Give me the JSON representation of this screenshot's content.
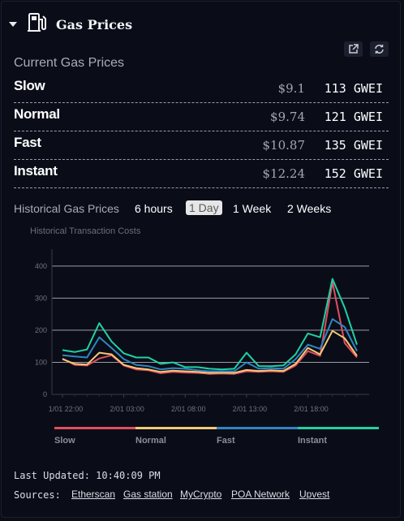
{
  "widget": {
    "title": "Gas Prices",
    "icons": {
      "collapse": "caret-down-icon",
      "header": "gas-pump-icon",
      "open": "external-link-icon",
      "refresh": "refresh-icon"
    }
  },
  "current": {
    "title": "Current Gas Prices",
    "rows": [
      {
        "name": "Slow",
        "usd": "$9.1",
        "gwei": "113 GWEI"
      },
      {
        "name": "Normal",
        "usd": "$9.74",
        "gwei": "121 GWEI"
      },
      {
        "name": "Fast",
        "usd": "$10.87",
        "gwei": "135 GWEI"
      },
      {
        "name": "Instant",
        "usd": "$12.24",
        "gwei": "152 GWEI"
      }
    ]
  },
  "historical": {
    "title": "Historical Gas Prices",
    "ranges": [
      "6 hours",
      "1 Day",
      "1 Week",
      "2 Weeks"
    ],
    "active_range": "1 Day"
  },
  "chart_data": {
    "type": "line",
    "title": "Historical Transaction Costs",
    "x_ticks": [
      "1/01 22:00",
      "2/01 03:00",
      "2/01 08:00",
      "2/01 13:00",
      "2/01 18:00"
    ],
    "y_ticks": [
      0,
      100,
      200,
      300,
      400
    ],
    "ylim": [
      0,
      440
    ],
    "grid": true,
    "legend_position": "bottom",
    "series": [
      {
        "name": "Slow",
        "color": "#e24d5e",
        "values": [
          112,
          92,
          90,
          112,
          122,
          90,
          78,
          75,
          66,
          70,
          68,
          67,
          64,
          65,
          64,
          72,
          70,
          72,
          70,
          90,
          135,
          120,
          350,
          160,
          115
        ]
      },
      {
        "name": "Normal",
        "color": "#f5c878",
        "values": [
          110,
          95,
          93,
          130,
          125,
          92,
          82,
          78,
          70,
          74,
          72,
          70,
          67,
          68,
          67,
          76,
          73,
          75,
          73,
          95,
          145,
          125,
          198,
          175,
          120
        ]
      },
      {
        "name": "Fast",
        "color": "#2e86c1",
        "values": [
          122,
          118,
          115,
          178,
          145,
          110,
          92,
          88,
          78,
          82,
          80,
          75,
          72,
          72,
          72,
          100,
          80,
          82,
          80,
          110,
          155,
          142,
          235,
          210,
          135
        ]
      },
      {
        "name": "Instant",
        "color": "#1fd1a5",
        "values": [
          138,
          132,
          140,
          222,
          165,
          128,
          115,
          115,
          95,
          100,
          85,
          85,
          80,
          78,
          80,
          130,
          88,
          88,
          90,
          125,
          190,
          178,
          360,
          270,
          155
        ]
      }
    ]
  },
  "footer": {
    "updated": "Last Updated: 10:40:09 PM",
    "sources_label": "Sources:",
    "sources": [
      "Etherscan",
      "Gas station",
      "MyCrypto",
      "POA Network",
      "Upvest"
    ]
  }
}
